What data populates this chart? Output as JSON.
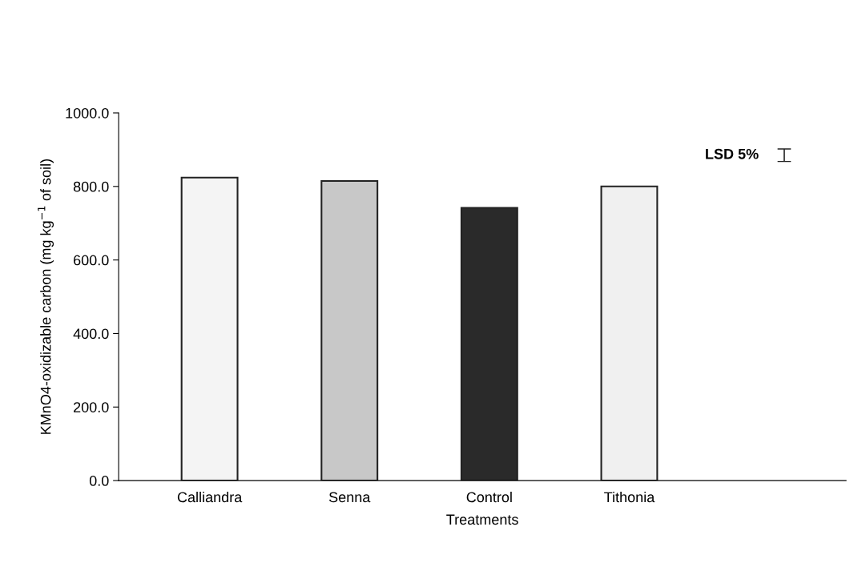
{
  "chart_data": {
    "type": "bar",
    "xlabel": "Treatments",
    "ylabel": "KMnO4-oxidizable carbon (mg kg$^{−1}$ of soil)",
    "categories": [
      "Calliandra",
      "Senna",
      "Control",
      "Tithonia"
    ],
    "values": [
      824,
      815,
      742,
      800
    ],
    "colors": [
      "#f4f4f4",
      "#c8c8c8",
      "#2a2a2a",
      "#f0f0f0"
    ],
    "ylim": [
      0,
      1000
    ],
    "yticks": [
      {
        "value": 0,
        "label": "0.0"
      },
      {
        "value": 200,
        "label": "200.0"
      },
      {
        "value": 400,
        "label": "400.0"
      },
      {
        "value": 600,
        "label": "600.0"
      },
      {
        "value": 800,
        "label": "800.0"
      },
      {
        "value": 1000,
        "label": "1000.0"
      }
    ],
    "annotations": [
      "LSD 5%"
    ],
    "grid": false,
    "legend": false
  }
}
